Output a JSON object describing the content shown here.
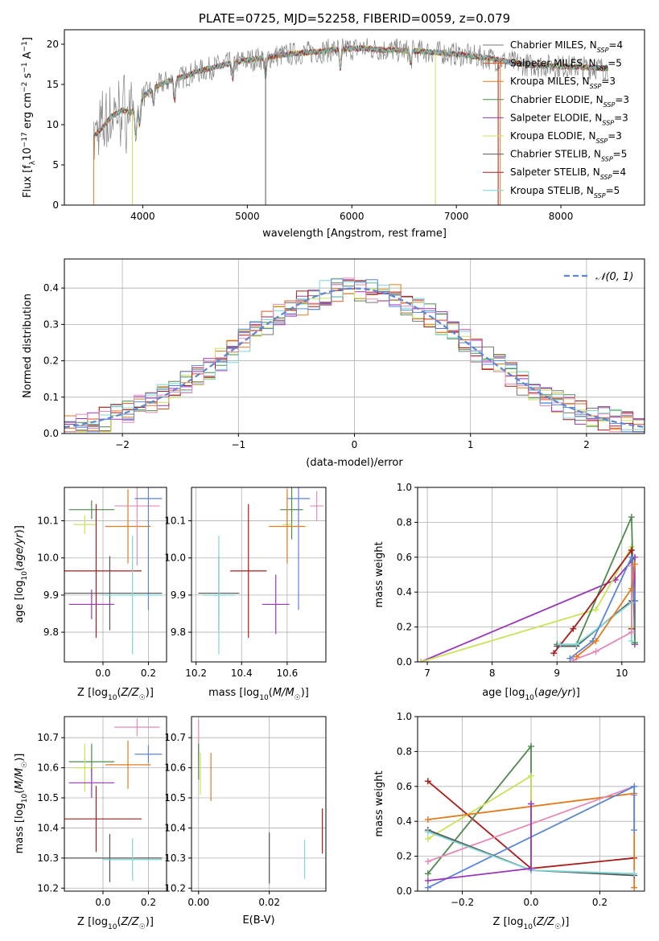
{
  "colors": {
    "grid": "#b0b0b0",
    "Chabrier MILES": "#777777",
    "Salpeter MILES": "#d9541a",
    "Kroupa MILES": "#e07b1f",
    "Chabrier ELODIE": "#4e8a4e",
    "Salpeter ELODIE": "#9a36b8",
    "Kroupa ELODIE": "#c9e25a",
    "Chabrier STELIB": "#555555",
    "Salpeter STELIB": "#a81c1c",
    "Kroupa STELIB": "#7fd6d6",
    "pink": "#e58ab8",
    "blue": "#5b86d6",
    "normal": "#5b86d6"
  },
  "chart_data": [
    {
      "id": "spectrum",
      "type": "line",
      "title": "PLATE=0725, MJD=52258, FIBERID=0059, z=0.079",
      "xlabel": "wavelength [Angstrom, rest frame]",
      "ylabel": "Flux [f$_\\lambda$10$^{-17}$ erg cm$^{-2}$ s$^{-1}$ A$^{-1}$]",
      "xlim": [
        3250,
        8800
      ],
      "ylim": [
        0,
        21.8
      ],
      "xticks": [
        "4000",
        "5000",
        "6000",
        "7000",
        "8000"
      ],
      "yticks": [
        "0",
        "5",
        "10",
        "15",
        "20"
      ],
      "legend": "upper-right",
      "legend_entries": [
        {
          "name": "Chabrier MILES",
          "label": "Chabrier MILES, N",
          "sub": "SSP",
          "tail": "=4"
        },
        {
          "name": "Salpeter MILES",
          "label": "Salpeter MILES, N",
          "sub": "SSP",
          "tail": "=5"
        },
        {
          "name": "Kroupa MILES",
          "label": "Kroupa MILES, N",
          "sub": "SSP",
          "tail": "=3"
        },
        {
          "name": "Chabrier ELODIE",
          "label": "Chabrier ELODIE, N",
          "sub": "SSP",
          "tail": "=3"
        },
        {
          "name": "Salpeter ELODIE",
          "label": "Salpeter ELODIE, N",
          "sub": "SSP",
          "tail": "=3"
        },
        {
          "name": "Kroupa ELODIE",
          "label": "Kroupa ELODIE, N",
          "sub": "SSP",
          "tail": "=3"
        },
        {
          "name": "Chabrier STELIB",
          "label": "Chabrier STELIB, N",
          "sub": "SSP",
          "tail": "=5"
        },
        {
          "name": "Salpeter STELIB",
          "label": "Salpeter STELIB, N",
          "sub": "SSP",
          "tail": "=4"
        },
        {
          "name": "Kroupa STELIB",
          "label": "Kroupa STELIB, N",
          "sub": "SSP",
          "tail": "=5"
        }
      ],
      "continuum": {
        "x": [
          3530,
          3600,
          3700,
          3800,
          3900,
          3950,
          4000,
          4100,
          4200,
          4300,
          4400,
          4500,
          4700,
          4900,
          5100,
          5300,
          5500,
          5700,
          5900,
          6100,
          6300,
          6500,
          6700,
          6900,
          7100,
          7300,
          7500,
          7700,
          7900,
          8100,
          8300,
          8450
        ],
        "y": [
          8.5,
          9.5,
          11.0,
          11.8,
          11.5,
          12.5,
          13.5,
          14.5,
          15.2,
          15.6,
          16.0,
          16.5,
          17.2,
          17.8,
          18.2,
          18.6,
          18.9,
          19.1,
          19.4,
          19.5,
          19.3,
          19.2,
          19.1,
          18.9,
          18.6,
          18.3,
          17.8,
          17.4,
          17.3,
          17.2,
          17.1,
          17.0
        ]
      },
      "features": [
        {
          "x": 3934,
          "dy": -3.5
        },
        {
          "x": 3969,
          "dy": -3.0
        },
        {
          "x": 4102,
          "dy": -2.0
        },
        {
          "x": 4305,
          "dy": -2.5
        },
        {
          "x": 4861,
          "dy": -2.0
        },
        {
          "x": 5175,
          "dy": -2.5
        },
        {
          "x": 5890,
          "dy": -2.5
        },
        {
          "x": 6563,
          "dy": -1.5
        }
      ]
    },
    {
      "id": "residuals",
      "type": "line",
      "xlabel": "(data-model)/error",
      "ylabel": "Normed distribution",
      "xlim": [
        -2.5,
        2.5
      ],
      "ylim": [
        0,
        0.48
      ],
      "xticks": [
        "−2",
        "−1",
        "0",
        "1",
        "2"
      ],
      "yticks": [
        "0.0",
        "0.1",
        "0.2",
        "0.3",
        "0.4"
      ],
      "legend": "upper-right",
      "legend_label": "𝒩(0, 1)",
      "bin_width": 0.1,
      "bin_start": -2.5,
      "normal": {
        "mean": 0,
        "sd": 1
      }
    },
    {
      "id": "z-age",
      "type": "scatter",
      "xlabel": "Z [log10(Z/Z☉)]",
      "ylabel": "age  [log10(age/yr)]",
      "xlim": [
        -0.17,
        0.28
      ],
      "ylim": [
        9.72,
        10.19
      ],
      "xticks": [
        "0.0",
        "0.2"
      ],
      "yticks": [
        "9.8",
        "9.9",
        "10.0",
        "10.1"
      ],
      "points": [
        {
          "c": "Chabrier ELODIE",
          "x": -0.05,
          "y": 10.13,
          "xe": 0.1,
          "ye": 0.025
        },
        {
          "c": "Kroupa ELODIE",
          "x": -0.08,
          "y": 10.09,
          "xe": 0.05,
          "ye": 0.025
        },
        {
          "c": "Kroupa MILES",
          "x": 0.11,
          "y": 10.085,
          "xe": 0.1,
          "ye": 0.1
        },
        {
          "c": "pink",
          "x": 0.15,
          "y": 10.14,
          "xe": 0.1,
          "ye": 0.16
        },
        {
          "c": "blue",
          "x": 0.2,
          "y": 10.16,
          "xe": 0.06,
          "ye": 0.3
        },
        {
          "c": "Salpeter STELIB",
          "x": -0.03,
          "y": 9.965,
          "xe": 0.2,
          "ye": 0.18
        },
        {
          "c": "Chabrier STELIB",
          "x": 0.03,
          "y": 9.905,
          "xe": 0.23,
          "ye": 0.1
        },
        {
          "c": "Salpeter ELODIE",
          "x": -0.05,
          "y": 9.875,
          "xe": 0.1,
          "ye": 0.04
        },
        {
          "c": "Kroupa STELIB",
          "x": 0.13,
          "y": 9.9,
          "xe": 0.13,
          "ye": 0.16
        }
      ]
    },
    {
      "id": "mass-age",
      "type": "scatter",
      "xlabel": "mass [log10(M/M☉)]",
      "ylabel": "",
      "xlim": [
        10.18,
        10.77
      ],
      "ylim": [
        9.72,
        10.19
      ],
      "xticks": [
        "10.2",
        "10.4",
        "10.6"
      ],
      "yticks": [
        "9.8",
        "9.9",
        "10.0",
        "10.1"
      ],
      "points": [
        {
          "c": "blue",
          "x": 10.65,
          "y": 10.16,
          "xe": 0.05,
          "ye": 0.3
        },
        {
          "c": "pink",
          "x": 10.73,
          "y": 10.14,
          "xe": 0.03,
          "ye": 0.04
        },
        {
          "c": "Chabrier ELODIE",
          "x": 10.62,
          "y": 10.13,
          "xe": 0.05,
          "ye": 0.08
        },
        {
          "c": "Kroupa ELODIE",
          "x": 10.6,
          "y": 10.09,
          "xe": 0.02,
          "ye": 0.05
        },
        {
          "c": "Kroupa MILES",
          "x": 10.6,
          "y": 10.085,
          "xe": 0.08,
          "ye": 0.1
        },
        {
          "c": "Salpeter STELIB",
          "x": 10.43,
          "y": 9.965,
          "xe": 0.08,
          "ye": 0.18
        },
        {
          "c": "Chabrier STELIB",
          "x": 10.3,
          "y": 9.905,
          "xe": 0.09,
          "ye": 0.1
        },
        {
          "c": "Salpeter ELODIE",
          "x": 10.55,
          "y": 9.875,
          "xe": 0.06,
          "ye": 0.08
        },
        {
          "c": "Kroupa STELIB",
          "x": 10.3,
          "y": 9.9,
          "xe": 0.07,
          "ye": 0.16
        }
      ]
    },
    {
      "id": "age-weight",
      "type": "line",
      "xlabel": "age  [log10(age/yr)]",
      "ylabel": "mass weight",
      "xlim": [
        6.85,
        10.35
      ],
      "ylim": [
        0,
        1.0
      ],
      "xticks": [
        "7",
        "8",
        "9",
        "10"
      ],
      "yticks": [
        "0.0",
        "0.2",
        "0.4",
        "0.6",
        "0.8",
        "1.0"
      ],
      "series": [
        {
          "c": "Salpeter ELODIE",
          "x": [
            6.9,
            9.9,
            10.2,
            10.2
          ],
          "y": [
            0.0,
            0.47,
            0.6,
            0.1
          ]
        },
        {
          "c": "Kroupa ELODIE",
          "x": [
            6.9,
            9.6,
            10.15,
            10.15
          ],
          "y": [
            0.0,
            0.3,
            0.66,
            0.2
          ]
        },
        {
          "c": "Chabrier ELODIE",
          "x": [
            9.0,
            9.3,
            10.15,
            10.2
          ],
          "y": [
            0.1,
            0.1,
            0.83,
            0.11
          ]
        },
        {
          "c": "Salpeter STELIB",
          "x": [
            8.95,
            9.25,
            10.15,
            10.15
          ],
          "y": [
            0.05,
            0.19,
            0.64,
            0.19
          ]
        },
        {
          "c": "Chabrier STELIB",
          "x": [
            9.0,
            9.3,
            10.15,
            10.2
          ],
          "y": [
            0.09,
            0.09,
            0.35,
            0.35
          ]
        },
        {
          "c": "Kroupa STELIB",
          "x": [
            9.05,
            9.3,
            10.15,
            10.15
          ],
          "y": [
            0.1,
            0.1,
            0.34,
            0.12
          ]
        },
        {
          "c": "blue",
          "x": [
            9.2,
            9.55,
            10.15,
            10.2
          ],
          "y": [
            0.02,
            0.12,
            0.6,
            0.35
          ]
        },
        {
          "c": "pink",
          "x": [
            9.25,
            9.6,
            10.15,
            10.15
          ],
          "y": [
            0.01,
            0.06,
            0.17,
            0.55
          ]
        },
        {
          "c": "Kroupa MILES",
          "x": [
            9.3,
            9.6,
            10.15,
            10.2
          ],
          "y": [
            0.03,
            0.12,
            0.42,
            0.56
          ]
        }
      ]
    },
    {
      "id": "z-mass",
      "type": "scatter",
      "xlabel": "Z [log10(Z/Z☉)]",
      "ylabel": "mass [log10(M/M☉)]",
      "xlim": [
        -0.17,
        0.28
      ],
      "ylim": [
        10.19,
        10.77
      ],
      "xticks": [
        "0.0",
        "0.2"
      ],
      "yticks": [
        "10.2",
        "10.3",
        "10.4",
        "10.5",
        "10.6",
        "10.7"
      ],
      "points": [
        {
          "c": "pink",
          "x": 0.15,
          "y": 10.735,
          "xe": 0.1,
          "ye": 0.03
        },
        {
          "c": "blue",
          "x": 0.2,
          "y": 10.645,
          "xe": 0.06,
          "ye": 0.03
        },
        {
          "c": "Chabrier ELODIE",
          "x": -0.05,
          "y": 10.62,
          "xe": 0.1,
          "ye": 0.06
        },
        {
          "c": "Kroupa MILES",
          "x": 0.11,
          "y": 10.61,
          "xe": 0.1,
          "ye": 0.08
        },
        {
          "c": "Kroupa ELODIE",
          "x": -0.08,
          "y": 10.6,
          "xe": 0.05,
          "ye": 0.08
        },
        {
          "c": "Salpeter ELODIE",
          "x": -0.05,
          "y": 10.55,
          "xe": 0.1,
          "ye": 0.05
        },
        {
          "c": "Salpeter STELIB",
          "x": -0.03,
          "y": 10.43,
          "xe": 0.2,
          "ye": 0.11
        },
        {
          "c": "Chabrier STELIB",
          "x": 0.03,
          "y": 10.3,
          "xe": 0.23,
          "ye": 0.08
        },
        {
          "c": "Kroupa STELIB",
          "x": 0.13,
          "y": 10.295,
          "xe": 0.13,
          "ye": 0.07
        }
      ]
    },
    {
      "id": "ebv-mass",
      "type": "scatter",
      "xlabel": "E(B-V)",
      "ylabel": "",
      "xlim": [
        -0.002,
        0.036
      ],
      "ylim": [
        10.19,
        10.77
      ],
      "xticks": [
        "0.00",
        "0.02"
      ],
      "yticks": [
        "10.2",
        "10.3",
        "10.4",
        "10.5",
        "10.6",
        "10.7"
      ],
      "points": [
        {
          "c": "pink",
          "x": 0.0,
          "y": 10.7,
          "xe": 0.0,
          "ye": 0.06
        },
        {
          "c": "Chabrier ELODIE",
          "x": 0.0,
          "y": 10.62,
          "xe": 0.0,
          "ye": 0.06
        },
        {
          "c": "Kroupa ELODIE",
          "x": 0.0005,
          "y": 10.58,
          "xe": 0.0,
          "ye": 0.07
        },
        {
          "c": "Kroupa MILES",
          "x": 0.0035,
          "y": 10.57,
          "xe": 0.0,
          "ye": 0.08
        },
        {
          "c": "Chabrier STELIB",
          "x": 0.02,
          "y": 10.3,
          "xe": 0.0,
          "ye": 0.085
        },
        {
          "c": "Kroupa STELIB",
          "x": 0.03,
          "y": 10.295,
          "xe": 0.0,
          "ye": 0.065
        },
        {
          "c": "Salpeter STELIB",
          "x": 0.035,
          "y": 10.39,
          "xe": 0.0,
          "ye": 0.075
        }
      ]
    },
    {
      "id": "z-weight",
      "type": "line",
      "xlabel": "Z [log10(Z/Z☉)]",
      "ylabel": "mass weight",
      "xlim": [
        -0.33,
        0.33
      ],
      "ylim": [
        0,
        1.0
      ],
      "xticks": [
        "−0.2",
        "0.0",
        "0.2"
      ],
      "yticks": [
        "0.0",
        "0.2",
        "0.4",
        "0.6",
        "0.8",
        "1.0"
      ],
      "series": [
        {
          "c": "Salpeter STELIB",
          "x": [
            -0.3,
            0.0,
            0.3
          ],
          "y": [
            0.63,
            0.13,
            0.19
          ]
        },
        {
          "c": "Chabrier ELODIE",
          "x": [
            -0.3,
            0.0,
            0.0
          ],
          "y": [
            0.1,
            0.83,
            0.13
          ]
        },
        {
          "c": "Kroupa ELODIE",
          "x": [
            -0.3,
            0.0,
            0.0
          ],
          "y": [
            0.3,
            0.66,
            0.13
          ]
        },
        {
          "c": "Kroupa MILES",
          "x": [
            -0.3,
            0.3,
            0.3
          ],
          "y": [
            0.41,
            0.56,
            0.02
          ]
        },
        {
          "c": "pink",
          "x": [
            -0.3,
            0.3,
            0.3
          ],
          "y": [
            0.17,
            0.6,
            0.55
          ]
        },
        {
          "c": "blue",
          "x": [
            -0.3,
            0.3,
            0.3
          ],
          "y": [
            0.02,
            0.6,
            0.35
          ]
        },
        {
          "c": "Chabrier STELIB",
          "x": [
            -0.3,
            0.0,
            0.3
          ],
          "y": [
            0.35,
            0.12,
            0.09
          ]
        },
        {
          "c": "Kroupa STELIB",
          "x": [
            -0.3,
            0.0,
            0.3
          ],
          "y": [
            0.34,
            0.12,
            0.1
          ]
        },
        {
          "c": "Salpeter ELODIE",
          "x": [
            -0.3,
            0.0,
            0.0
          ],
          "y": [
            0.06,
            0.13,
            0.5
          ]
        }
      ]
    }
  ]
}
